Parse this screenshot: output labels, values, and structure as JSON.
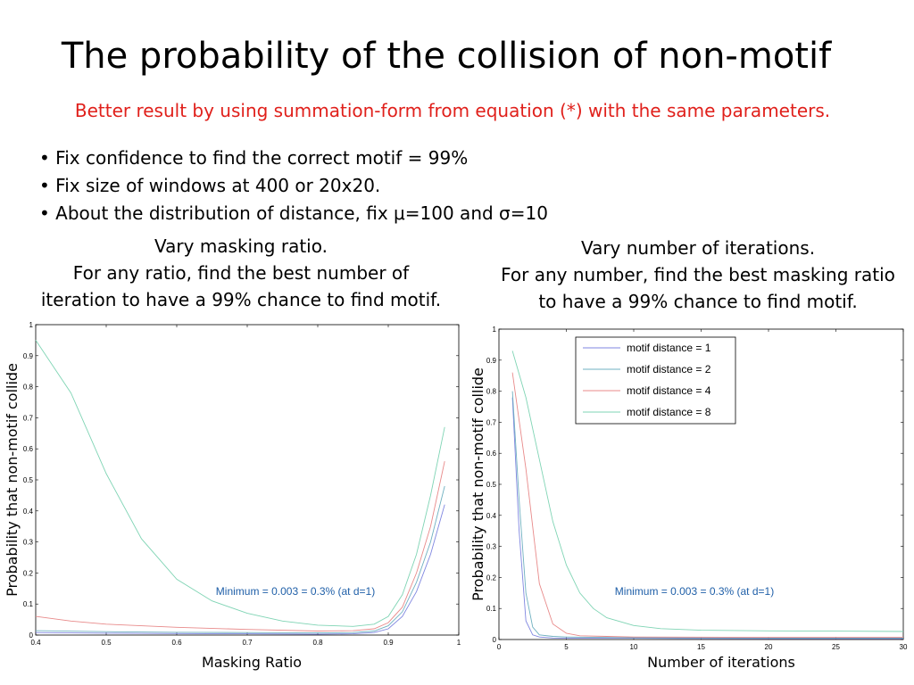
{
  "slide": {
    "title": "The probability of the collision of non-motif",
    "subtitle": "Better result by using summation-form from equation (*) with the same parameters.",
    "bullets": [
      "Fix confidence to find the correct motif = 99%",
      "Fix size of windows at 400 or 20x20.",
      "About the distribution of distance, fix μ=100 and σ=10"
    ],
    "left_caption": [
      "Vary masking ratio.",
      "For any ratio, find the best number of",
      "iteration to have a 99% chance to find motif."
    ],
    "right_caption": [
      "Vary number of iterations.",
      "For any number, find the best masking ratio",
      "to have a 99% chance to find motif."
    ]
  },
  "colors": {
    "subtitle": "#e0201b",
    "annotation": "#1f5fa8",
    "d1": "#7f86e0",
    "d2": "#6fb0c0",
    "d4": "#e88a8a",
    "d8": "#7fd4b4"
  },
  "chart_data": [
    {
      "type": "line",
      "xlabel": "Masking Ratio",
      "ylabel": "Probability that  non-motif collide",
      "xlim": [
        0.4,
        1
      ],
      "ylim": [
        0,
        1
      ],
      "xticks": [
        0.4,
        0.5,
        0.6,
        0.7,
        0.8,
        0.9,
        1
      ],
      "xtick_labels": [
        "0.4",
        "0.5",
        "0.6",
        "0.7",
        "0.8",
        "0.9",
        "1"
      ],
      "yticks": [
        0,
        0.1,
        0.2,
        0.3,
        0.4,
        0.5,
        0.6,
        0.7,
        0.8,
        0.9,
        1
      ],
      "ytick_labels": [
        "0",
        "0.1",
        "0.2",
        "0.3",
        "0.4",
        "0.5",
        "0.6",
        "0.7",
        "0.8",
        "0.9",
        "1"
      ],
      "annotation": "Minimum = 0.003 = 0.3% (at d=1)",
      "series": [
        {
          "color": "#7f86e0",
          "x": [
            0.4,
            0.5,
            0.6,
            0.7,
            0.8,
            0.85,
            0.88,
            0.9,
            0.92,
            0.94,
            0.96,
            0.98
          ],
          "y": [
            0.008,
            0.006,
            0.005,
            0.004,
            0.003,
            0.004,
            0.008,
            0.02,
            0.06,
            0.14,
            0.26,
            0.42
          ]
        },
        {
          "color": "#6fb0c0",
          "x": [
            0.4,
            0.5,
            0.6,
            0.7,
            0.8,
            0.85,
            0.88,
            0.9,
            0.92,
            0.94,
            0.96,
            0.98
          ],
          "y": [
            0.014,
            0.011,
            0.009,
            0.008,
            0.007,
            0.008,
            0.013,
            0.03,
            0.075,
            0.17,
            0.3,
            0.48
          ]
        },
        {
          "color": "#e88a8a",
          "x": [
            0.4,
            0.45,
            0.5,
            0.6,
            0.7,
            0.8,
            0.85,
            0.88,
            0.9,
            0.92,
            0.94,
            0.96,
            0.98
          ],
          "y": [
            0.06,
            0.045,
            0.035,
            0.025,
            0.018,
            0.013,
            0.014,
            0.02,
            0.04,
            0.09,
            0.2,
            0.35,
            0.56
          ]
        },
        {
          "color": "#7fd4b4",
          "x": [
            0.4,
            0.45,
            0.5,
            0.55,
            0.6,
            0.65,
            0.7,
            0.75,
            0.8,
            0.85,
            0.88,
            0.9,
            0.92,
            0.94,
            0.96,
            0.98
          ],
          "y": [
            0.95,
            0.78,
            0.52,
            0.31,
            0.18,
            0.11,
            0.07,
            0.045,
            0.032,
            0.028,
            0.035,
            0.06,
            0.13,
            0.26,
            0.45,
            0.67
          ]
        }
      ]
    },
    {
      "type": "line",
      "xlabel": "Number of iterations",
      "ylabel": "Probability that  non-motif collide",
      "xlim": [
        0,
        30
      ],
      "ylim": [
        0,
        1
      ],
      "xticks": [
        0,
        5,
        10,
        15,
        20,
        25,
        30
      ],
      "xtick_labels": [
        "0",
        "5",
        "10",
        "15",
        "20",
        "25",
        "30"
      ],
      "yticks": [
        0,
        0.1,
        0.2,
        0.3,
        0.4,
        0.5,
        0.6,
        0.7,
        0.8,
        0.9,
        1
      ],
      "ytick_labels": [
        "0",
        "0.1",
        "0.2",
        "0.3",
        "0.4",
        "0.5",
        "0.6",
        "0.7",
        "0.8",
        "0.9",
        "1"
      ],
      "annotation": "Minimum = 0.003 = 0.3% (at d=1)",
      "legend": {
        "placement": "top-right"
      },
      "series": [
        {
          "name": "motif distance = 1",
          "color": "#7f86e0",
          "x": [
            1,
            1.5,
            2,
            2.5,
            3,
            4,
            5,
            10,
            20,
            30
          ],
          "y": [
            0.78,
            0.35,
            0.06,
            0.015,
            0.008,
            0.005,
            0.004,
            0.004,
            0.003,
            0.003
          ]
        },
        {
          "name": "motif distance = 2",
          "color": "#6fb0c0",
          "x": [
            1,
            1.5,
            2,
            2.5,
            3,
            4,
            5,
            10,
            20,
            30
          ],
          "y": [
            0.8,
            0.45,
            0.15,
            0.04,
            0.015,
            0.01,
            0.008,
            0.006,
            0.005,
            0.005
          ]
        },
        {
          "name": "motif distance = 4",
          "color": "#e88a8a",
          "x": [
            1,
            2,
            3,
            4,
            5,
            6,
            8,
            10,
            20,
            30
          ],
          "y": [
            0.86,
            0.55,
            0.18,
            0.05,
            0.02,
            0.012,
            0.01,
            0.008,
            0.007,
            0.007
          ]
        },
        {
          "name": "motif distance = 8",
          "color": "#7fd4b4",
          "x": [
            1,
            2,
            3,
            4,
            5,
            6,
            7,
            8,
            10,
            12,
            15,
            20,
            25,
            30
          ],
          "y": [
            0.93,
            0.78,
            0.58,
            0.38,
            0.24,
            0.15,
            0.1,
            0.07,
            0.045,
            0.035,
            0.03,
            0.028,
            0.027,
            0.026
          ]
        }
      ]
    }
  ]
}
